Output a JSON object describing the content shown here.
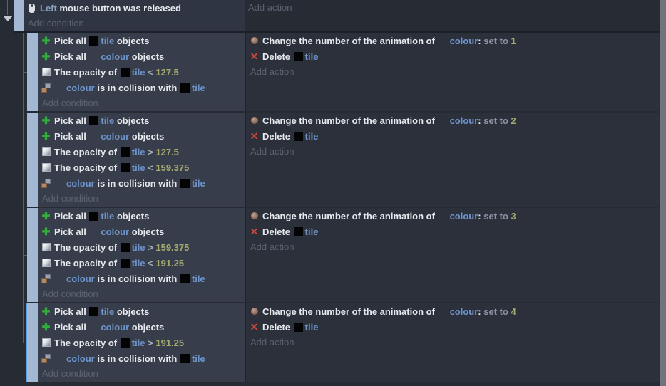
{
  "colors": {
    "object_name": "#6d95cc",
    "parameter": "#87a1bd",
    "number": "#a4aa70",
    "keyword": "#8d92a6",
    "selection_border": "#5ba0e0",
    "event_handle_bar": "#a3b8d2",
    "conditions_background": "#373d4a",
    "actions_background": "#2b303b"
  },
  "labels": {
    "add_condition": "Add condition",
    "add_action": "Add action"
  },
  "root_event": {
    "condition": {
      "icon": "mouse",
      "segments": [
        {
          "t": "Left ",
          "s": "param"
        },
        {
          "t": "mouse button was released",
          "s": "white"
        }
      ]
    }
  },
  "sub_events": [
    {
      "selected": false,
      "conditions": [
        {
          "icon": "pick-all",
          "segments": [
            {
              "t": "Pick all ",
              "s": "white"
            },
            {
              "swatch": "tile"
            },
            {
              "t": "tile",
              "s": "object"
            },
            {
              "t": " objects",
              "s": "white"
            }
          ]
        },
        {
          "icon": "pick-all",
          "segments": [
            {
              "t": "Pick all ",
              "s": "white"
            },
            {
              "swatch": "blank"
            },
            {
              "t": "colour",
              "s": "object"
            },
            {
              "t": " objects",
              "s": "white"
            }
          ]
        },
        {
          "icon": "opacity",
          "segments": [
            {
              "t": "The opacity of ",
              "s": "white"
            },
            {
              "swatch": "tile"
            },
            {
              "t": "tile",
              "s": "object"
            },
            {
              "t": " < ",
              "s": "operator"
            },
            {
              "t": "127.5",
              "s": "number"
            }
          ]
        },
        {
          "icon": "collision",
          "segments": [
            {
              "swatch": "blank"
            },
            {
              "t": "colour",
              "s": "object"
            },
            {
              "t": " is in collision with ",
              "s": "white"
            },
            {
              "swatch": "tile"
            },
            {
              "t": "tile",
              "s": "object"
            }
          ]
        }
      ],
      "actions": [
        {
          "icon": "animation",
          "segments": [
            {
              "t": "Change the number of the animation of ",
              "s": "white"
            },
            {
              "swatch": "blank"
            },
            {
              "t": "colour",
              "s": "object"
            },
            {
              "t": ": ",
              "s": "white"
            },
            {
              "t": "set to ",
              "s": "keyword"
            },
            {
              "t": "1",
              "s": "number"
            }
          ]
        },
        {
          "icon": "delete",
          "segments": [
            {
              "t": "Delete ",
              "s": "white"
            },
            {
              "swatch": "tile"
            },
            {
              "t": "tile",
              "s": "object"
            }
          ]
        }
      ]
    },
    {
      "selected": false,
      "conditions": [
        {
          "icon": "pick-all",
          "segments": [
            {
              "t": "Pick all ",
              "s": "white"
            },
            {
              "swatch": "tile"
            },
            {
              "t": "tile",
              "s": "object"
            },
            {
              "t": " objects",
              "s": "white"
            }
          ]
        },
        {
          "icon": "pick-all",
          "segments": [
            {
              "t": "Pick all ",
              "s": "white"
            },
            {
              "swatch": "blank"
            },
            {
              "t": "colour",
              "s": "object"
            },
            {
              "t": " objects",
              "s": "white"
            }
          ]
        },
        {
          "icon": "opacity",
          "segments": [
            {
              "t": "The opacity of ",
              "s": "white"
            },
            {
              "swatch": "tile"
            },
            {
              "t": "tile",
              "s": "object"
            },
            {
              "t": " > ",
              "s": "operator"
            },
            {
              "t": "127.5",
              "s": "number"
            }
          ]
        },
        {
          "icon": "opacity",
          "segments": [
            {
              "t": "The opacity of ",
              "s": "white"
            },
            {
              "swatch": "tile"
            },
            {
              "t": "tile",
              "s": "object"
            },
            {
              "t": " < ",
              "s": "operator"
            },
            {
              "t": "159.375",
              "s": "number"
            }
          ]
        },
        {
          "icon": "collision",
          "segments": [
            {
              "swatch": "blank"
            },
            {
              "t": "colour",
              "s": "object"
            },
            {
              "t": " is in collision with ",
              "s": "white"
            },
            {
              "swatch": "tile"
            },
            {
              "t": "tile",
              "s": "object"
            }
          ]
        }
      ],
      "actions": [
        {
          "icon": "animation",
          "segments": [
            {
              "t": "Change the number of the animation of ",
              "s": "white"
            },
            {
              "swatch": "blank"
            },
            {
              "t": "colour",
              "s": "object"
            },
            {
              "t": ": ",
              "s": "white"
            },
            {
              "t": "set to ",
              "s": "keyword"
            },
            {
              "t": "2",
              "s": "number"
            }
          ]
        },
        {
          "icon": "delete",
          "segments": [
            {
              "t": "Delete ",
              "s": "white"
            },
            {
              "swatch": "tile"
            },
            {
              "t": "tile",
              "s": "object"
            }
          ]
        }
      ]
    },
    {
      "selected": false,
      "conditions": [
        {
          "icon": "pick-all",
          "segments": [
            {
              "t": "Pick all ",
              "s": "white"
            },
            {
              "swatch": "tile"
            },
            {
              "t": "tile",
              "s": "object"
            },
            {
              "t": " objects",
              "s": "white"
            }
          ]
        },
        {
          "icon": "pick-all",
          "segments": [
            {
              "t": "Pick all ",
              "s": "white"
            },
            {
              "swatch": "blank"
            },
            {
              "t": "colour",
              "s": "object"
            },
            {
              "t": " objects",
              "s": "white"
            }
          ]
        },
        {
          "icon": "opacity",
          "segments": [
            {
              "t": "The opacity of ",
              "s": "white"
            },
            {
              "swatch": "tile"
            },
            {
              "t": "tile",
              "s": "object"
            },
            {
              "t": " > ",
              "s": "operator"
            },
            {
              "t": "159.375",
              "s": "number"
            }
          ]
        },
        {
          "icon": "opacity",
          "segments": [
            {
              "t": "The opacity of ",
              "s": "white"
            },
            {
              "swatch": "tile"
            },
            {
              "t": "tile",
              "s": "object"
            },
            {
              "t": " < ",
              "s": "operator"
            },
            {
              "t": "191.25",
              "s": "number"
            }
          ]
        },
        {
          "icon": "collision",
          "segments": [
            {
              "swatch": "blank"
            },
            {
              "t": "colour",
              "s": "object"
            },
            {
              "t": " is in collision with ",
              "s": "white"
            },
            {
              "swatch": "tile"
            },
            {
              "t": "tile",
              "s": "object"
            }
          ]
        }
      ],
      "actions": [
        {
          "icon": "animation",
          "segments": [
            {
              "t": "Change the number of the animation of ",
              "s": "white"
            },
            {
              "swatch": "blank"
            },
            {
              "t": "colour",
              "s": "object"
            },
            {
              "t": ": ",
              "s": "white"
            },
            {
              "t": "set to ",
              "s": "keyword"
            },
            {
              "t": "3",
              "s": "number"
            }
          ]
        },
        {
          "icon": "delete",
          "segments": [
            {
              "t": "Delete ",
              "s": "white"
            },
            {
              "swatch": "tile"
            },
            {
              "t": "tile",
              "s": "object"
            }
          ]
        }
      ]
    },
    {
      "selected": true,
      "conditions": [
        {
          "icon": "pick-all",
          "segments": [
            {
              "t": "Pick all ",
              "s": "white"
            },
            {
              "swatch": "tile"
            },
            {
              "t": "tile",
              "s": "object"
            },
            {
              "t": " objects",
              "s": "white"
            }
          ]
        },
        {
          "icon": "pick-all",
          "segments": [
            {
              "t": "Pick all ",
              "s": "white"
            },
            {
              "swatch": "blank"
            },
            {
              "t": "colour",
              "s": "object"
            },
            {
              "t": " objects",
              "s": "white"
            }
          ]
        },
        {
          "icon": "opacity",
          "segments": [
            {
              "t": "The opacity of ",
              "s": "white"
            },
            {
              "swatch": "tile"
            },
            {
              "t": "tile",
              "s": "object"
            },
            {
              "t": " > ",
              "s": "operator"
            },
            {
              "t": "191.25",
              "s": "number"
            }
          ]
        },
        {
          "icon": "collision",
          "segments": [
            {
              "swatch": "blank"
            },
            {
              "t": "colour",
              "s": "object"
            },
            {
              "t": " is in collision with ",
              "s": "white"
            },
            {
              "swatch": "tile"
            },
            {
              "t": "tile",
              "s": "object"
            }
          ]
        }
      ],
      "actions": [
        {
          "icon": "animation",
          "segments": [
            {
              "t": "Change the number of the animation of ",
              "s": "white"
            },
            {
              "swatch": "blank"
            },
            {
              "t": "colour",
              "s": "object"
            },
            {
              "t": ": ",
              "s": "white"
            },
            {
              "t": "set to ",
              "s": "keyword"
            },
            {
              "t": "4",
              "s": "number"
            }
          ]
        },
        {
          "icon": "delete",
          "segments": [
            {
              "t": "Delete ",
              "s": "white"
            },
            {
              "swatch": "tile"
            },
            {
              "t": "tile",
              "s": "object"
            }
          ]
        }
      ]
    }
  ]
}
